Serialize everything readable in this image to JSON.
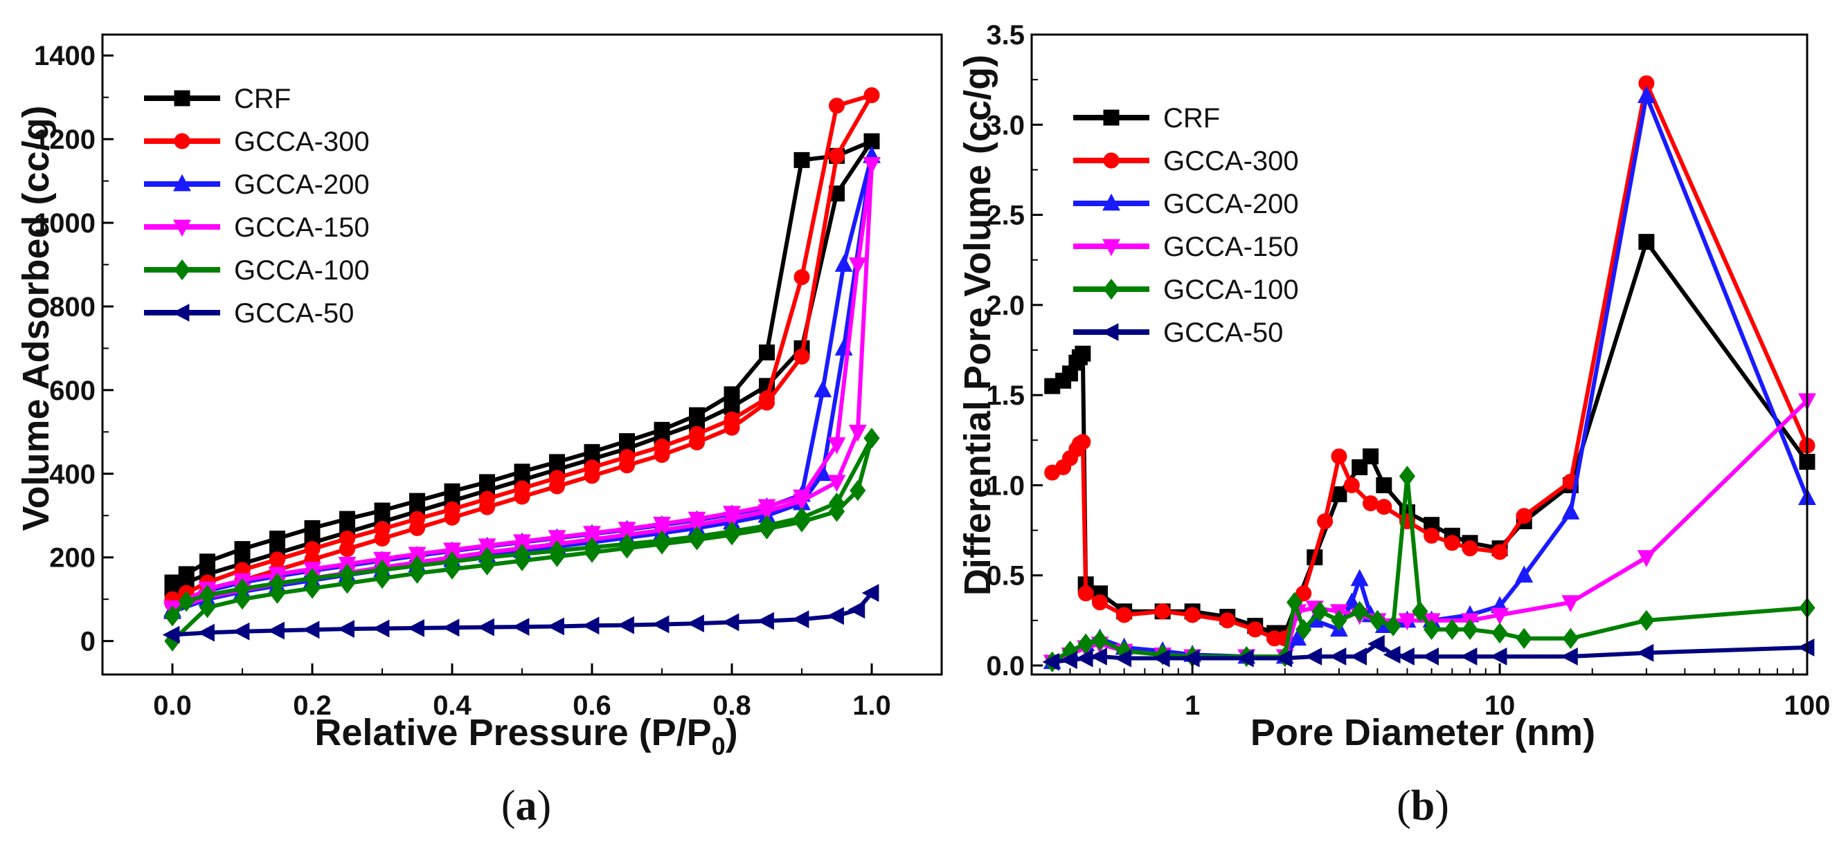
{
  "colors": {
    "CRF": "#000000",
    "GCCA-300": "#ff0000",
    "GCCA-200": "#1a1aff",
    "GCCA-150": "#ff00ff",
    "GCCA-100": "#008000",
    "GCCA-50": "#000080"
  },
  "chart_data": [
    {
      "type": "line",
      "panel_label": {
        "open": "(",
        "letter": "a",
        "close": ")"
      },
      "xlabel": {
        "main": "Relative Pressure (P/P",
        "sub": "0",
        "tail": ")"
      },
      "ylabel": "Volume Adsorbed (cc/g)",
      "xlim": [
        -0.1,
        1.1
      ],
      "ylim": [
        -80,
        1450
      ],
      "xticks": [
        0.0,
        0.2,
        0.4,
        0.6,
        0.8,
        1.0
      ],
      "xtick_labels": [
        "0.0",
        "0.2",
        "0.4",
        "0.6",
        "0.8",
        "1.0"
      ],
      "yticks": [
        0,
        200,
        400,
        600,
        800,
        1000,
        1200,
        1400
      ],
      "ytick_labels": [
        "0",
        "200",
        "400",
        "600",
        "800",
        "1000",
        "1200",
        "1400"
      ],
      "legend_position": "top-left",
      "series": [
        {
          "name": "CRF",
          "marker": "square",
          "x": [
            0.0,
            0.02,
            0.05,
            0.1,
            0.15,
            0.2,
            0.25,
            0.3,
            0.35,
            0.4,
            0.45,
            0.5,
            0.55,
            0.6,
            0.65,
            0.7,
            0.75,
            0.8,
            0.85,
            0.9,
            0.95,
            1.0,
            0.95,
            0.9,
            0.85,
            0.8,
            0.75,
            0.7,
            0.65,
            0.6,
            0.55,
            0.5,
            0.45,
            0.4,
            0.35,
            0.3,
            0.25,
            0.2,
            0.15,
            0.1,
            0.05,
            0.02,
            0.0
          ],
          "y": [
            140,
            160,
            190,
            220,
            245,
            270,
            292,
            312,
            335,
            358,
            380,
            405,
            428,
            452,
            478,
            505,
            540,
            590,
            690,
            1150,
            1160,
            1195,
            1070,
            700,
            610,
            560,
            520,
            490,
            460,
            435,
            410,
            385,
            360,
            335,
            310,
            285,
            260,
            235,
            210,
            185,
            160,
            140,
            125
          ]
        },
        {
          "name": "GCCA-300",
          "marker": "circle",
          "x": [
            0.0,
            0.02,
            0.05,
            0.1,
            0.15,
            0.2,
            0.25,
            0.3,
            0.35,
            0.4,
            0.45,
            0.5,
            0.55,
            0.6,
            0.65,
            0.7,
            0.75,
            0.8,
            0.85,
            0.9,
            0.95,
            1.0,
            0.95,
            0.9,
            0.85,
            0.8,
            0.75,
            0.7,
            0.65,
            0.6,
            0.55,
            0.5,
            0.45,
            0.4,
            0.35,
            0.3,
            0.25,
            0.2,
            0.15,
            0.1,
            0.05,
            0.02,
            0.0
          ],
          "y": [
            100,
            115,
            140,
            170,
            195,
            220,
            245,
            268,
            292,
            315,
            340,
            365,
            390,
            415,
            440,
            465,
            495,
            530,
            580,
            870,
            1280,
            1305,
            1160,
            680,
            570,
            510,
            475,
            445,
            420,
            395,
            370,
            345,
            320,
            295,
            270,
            245,
            220,
            195,
            170,
            145,
            120,
            100,
            90
          ]
        },
        {
          "name": "GCCA-200",
          "marker": "triangle-up",
          "x": [
            0.0,
            0.05,
            0.1,
            0.15,
            0.2,
            0.25,
            0.3,
            0.35,
            0.4,
            0.45,
            0.5,
            0.55,
            0.6,
            0.65,
            0.7,
            0.75,
            0.8,
            0.85,
            0.9,
            0.93,
            0.96,
            1.0,
            0.96,
            0.93,
            0.9,
            0.85,
            0.8,
            0.75,
            0.7,
            0.65,
            0.6,
            0.55,
            0.5,
            0.45,
            0.4,
            0.35,
            0.3,
            0.25,
            0.2,
            0.15,
            0.1,
            0.05,
            0.0
          ],
          "y": [
            75,
            120,
            140,
            155,
            168,
            180,
            192,
            204,
            215,
            226,
            236,
            246,
            256,
            266,
            277,
            289,
            303,
            320,
            350,
            600,
            900,
            1160,
            700,
            400,
            330,
            300,
            284,
            270,
            258,
            247,
            236,
            226,
            216,
            205,
            194,
            182,
            170,
            158,
            145,
            132,
            118,
            100,
            70
          ]
        },
        {
          "name": "GCCA-150",
          "marker": "triangle-down",
          "x": [
            0.0,
            0.05,
            0.1,
            0.15,
            0.2,
            0.25,
            0.3,
            0.35,
            0.4,
            0.45,
            0.5,
            0.55,
            0.6,
            0.65,
            0.7,
            0.75,
            0.8,
            0.85,
            0.9,
            0.95,
            0.98,
            1.0,
            0.98,
            0.95,
            0.9,
            0.85,
            0.8,
            0.75,
            0.7,
            0.65,
            0.6,
            0.55,
            0.5,
            0.45,
            0.4,
            0.35,
            0.3,
            0.25,
            0.2,
            0.15,
            0.1,
            0.05,
            0.0
          ],
          "y": [
            80,
            125,
            145,
            160,
            172,
            184,
            196,
            208,
            218,
            228,
            238,
            248,
            258,
            268,
            280,
            292,
            306,
            322,
            345,
            470,
            900,
            1140,
            500,
            380,
            335,
            310,
            292,
            278,
            265,
            254,
            243,
            232,
            222,
            212,
            200,
            188,
            176,
            163,
            150,
            137,
            122,
            105,
            75
          ]
        },
        {
          "name": "GCCA-100",
          "marker": "diamond",
          "x": [
            0.0,
            0.02,
            0.05,
            0.1,
            0.15,
            0.2,
            0.25,
            0.3,
            0.35,
            0.4,
            0.45,
            0.5,
            0.55,
            0.6,
            0.65,
            0.7,
            0.75,
            0.8,
            0.85,
            0.9,
            0.95,
            1.0,
            0.98,
            0.95,
            0.9,
            0.85,
            0.8,
            0.75,
            0.7,
            0.65,
            0.6,
            0.55,
            0.5,
            0.45,
            0.4,
            0.35,
            0.3,
            0.25,
            0.2,
            0.15,
            0.1,
            0.05,
            0.0
          ],
          "y": [
            60,
            95,
            110,
            125,
            138,
            150,
            160,
            170,
            180,
            190,
            200,
            208,
            216,
            224,
            232,
            240,
            250,
            262,
            276,
            295,
            330,
            485,
            360,
            310,
            285,
            268,
            254,
            242,
            232,
            222,
            212,
            202,
            192,
            182,
            172,
            162,
            150,
            138,
            126,
            114,
            100,
            80,
            0
          ]
        },
        {
          "name": "GCCA-50",
          "marker": "triangle-left",
          "x": [
            0.0,
            0.05,
            0.1,
            0.15,
            0.2,
            0.25,
            0.3,
            0.35,
            0.4,
            0.45,
            0.5,
            0.55,
            0.6,
            0.65,
            0.7,
            0.75,
            0.8,
            0.85,
            0.9,
            0.95,
            0.98,
            1.0
          ],
          "y": [
            15,
            20,
            23,
            25,
            27,
            29,
            30,
            31,
            32,
            33,
            34,
            35,
            37,
            38,
            40,
            42,
            45,
            48,
            52,
            60,
            75,
            115
          ]
        }
      ]
    },
    {
      "type": "line",
      "xscale": "log",
      "panel_label": {
        "open": "(",
        "letter": "b",
        "close": ")"
      },
      "xlabel": "Pore Diameter (nm)",
      "ylabel": "Differential Pore Volume (cc/g)",
      "xlim": [
        0.3,
        100
      ],
      "ylim": [
        -0.05,
        3.5
      ],
      "xticks": [
        1,
        10,
        100
      ],
      "xtick_labels": [
        "1",
        "10",
        "100"
      ],
      "yticks": [
        0.0,
        0.5,
        1.0,
        1.5,
        2.0,
        2.5,
        3.0,
        3.5
      ],
      "ytick_labels": [
        "0.0",
        "0.5",
        "1.0",
        "1.5",
        "2.0",
        "2.5",
        "3.0",
        "3.5"
      ],
      "legend_position": "top-left",
      "series": [
        {
          "name": "CRF",
          "marker": "square",
          "x": [
            0.35,
            0.38,
            0.4,
            0.42,
            0.43,
            0.44,
            0.45,
            0.5,
            0.6,
            0.8,
            1.0,
            1.3,
            1.6,
            1.85,
            2.0,
            2.5,
            3.0,
            3.5,
            3.8,
            4.2,
            5.0,
            6.0,
            7.0,
            8.0,
            10.0,
            12.0,
            17.0,
            30.0,
            100.0
          ],
          "y": [
            1.55,
            1.58,
            1.62,
            1.68,
            1.71,
            1.73,
            0.45,
            0.4,
            0.3,
            0.3,
            0.3,
            0.27,
            0.22,
            0.18,
            0.18,
            0.6,
            0.95,
            1.1,
            1.16,
            1.0,
            0.85,
            0.78,
            0.72,
            0.68,
            0.65,
            0.8,
            1.0,
            2.35,
            1.13
          ]
        },
        {
          "name": "GCCA-300",
          "marker": "circle",
          "x": [
            0.35,
            0.38,
            0.4,
            0.42,
            0.43,
            0.44,
            0.45,
            0.5,
            0.6,
            0.8,
            1.0,
            1.3,
            1.6,
            1.85,
            2.0,
            2.3,
            2.7,
            3.0,
            3.3,
            3.8,
            4.2,
            5.0,
            6.0,
            7.0,
            8.0,
            10.0,
            12.0,
            17.0,
            30.0,
            100.0
          ],
          "y": [
            1.07,
            1.1,
            1.15,
            1.2,
            1.23,
            1.24,
            0.4,
            0.35,
            0.28,
            0.3,
            0.28,
            0.25,
            0.2,
            0.15,
            0.15,
            0.4,
            0.8,
            1.16,
            1.0,
            0.9,
            0.88,
            0.8,
            0.72,
            0.68,
            0.65,
            0.63,
            0.83,
            1.02,
            3.23,
            1.22
          ]
        },
        {
          "name": "GCCA-200",
          "marker": "triangle-up",
          "x": [
            0.35,
            0.4,
            0.45,
            0.5,
            0.6,
            0.8,
            1.0,
            1.5,
            2.0,
            2.2,
            2.5,
            3.0,
            3.3,
            3.5,
            3.8,
            4.2,
            5.0,
            6.0,
            8.0,
            10.0,
            12.0,
            17.0,
            30.0,
            100.0
          ],
          "y": [
            0.02,
            0.08,
            0.12,
            0.15,
            0.1,
            0.08,
            0.06,
            0.05,
            0.05,
            0.15,
            0.25,
            0.2,
            0.35,
            0.48,
            0.28,
            0.22,
            0.25,
            0.25,
            0.28,
            0.33,
            0.5,
            0.85,
            3.16,
            0.93
          ]
        },
        {
          "name": "GCCA-150",
          "marker": "triangle-down",
          "x": [
            0.35,
            0.4,
            0.45,
            0.5,
            0.6,
            0.8,
            1.0,
            1.5,
            2.0,
            2.2,
            2.5,
            3.0,
            3.5,
            4.0,
            5.0,
            6.0,
            8.0,
            10.0,
            17.0,
            30.0,
            100.0
          ],
          "y": [
            0.02,
            0.06,
            0.1,
            0.12,
            0.08,
            0.06,
            0.05,
            0.05,
            0.05,
            0.3,
            0.32,
            0.3,
            0.28,
            0.25,
            0.25,
            0.25,
            0.25,
            0.28,
            0.35,
            0.6,
            1.47
          ]
        },
        {
          "name": "GCCA-100",
          "marker": "diamond",
          "x": [
            0.35,
            0.4,
            0.45,
            0.5,
            0.6,
            0.8,
            1.0,
            1.5,
            2.0,
            2.15,
            2.3,
            2.6,
            3.0,
            3.5,
            4.0,
            4.5,
            5.0,
            5.5,
            6.0,
            7.0,
            8.0,
            10.0,
            12.0,
            17.0,
            30.0,
            100.0
          ],
          "y": [
            0.02,
            0.08,
            0.12,
            0.14,
            0.08,
            0.06,
            0.05,
            0.05,
            0.05,
            0.35,
            0.2,
            0.3,
            0.25,
            0.3,
            0.25,
            0.22,
            1.05,
            0.3,
            0.2,
            0.2,
            0.2,
            0.18,
            0.15,
            0.15,
            0.25,
            0.32
          ]
        },
        {
          "name": "GCCA-50",
          "marker": "triangle-left",
          "x": [
            0.35,
            0.4,
            0.45,
            0.5,
            0.6,
            0.8,
            1.0,
            1.5,
            2.0,
            2.5,
            3.0,
            3.5,
            4.0,
            4.5,
            5.0,
            6.0,
            8.0,
            10.0,
            17.0,
            30.0,
            100.0
          ],
          "y": [
            0.02,
            0.03,
            0.04,
            0.05,
            0.04,
            0.04,
            0.04,
            0.04,
            0.04,
            0.05,
            0.05,
            0.05,
            0.12,
            0.06,
            0.05,
            0.05,
            0.05,
            0.05,
            0.05,
            0.07,
            0.1
          ]
        }
      ]
    }
  ]
}
